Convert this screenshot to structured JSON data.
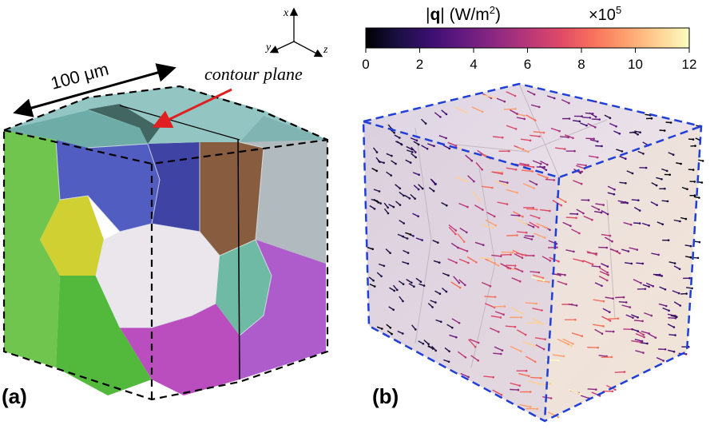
{
  "panel_a": {
    "label": "(a)",
    "scale_label": "100 μm",
    "contour_label": "contour plane",
    "axes": {
      "x": "x",
      "y": "y",
      "z": "z"
    }
  },
  "panel_b": {
    "label": "(b)",
    "colorbar": {
      "title_prefix": "|",
      "title_bold": "q",
      "title_suffix": "|  (W/m",
      "title_sup": "2",
      "title_close": ")",
      "multiplier": "×10",
      "multiplier_sup": "5",
      "ticks": [
        "0",
        "2",
        "4",
        "6",
        "8",
        "10",
        "12"
      ],
      "tick_values": [
        0,
        2,
        4,
        6,
        8,
        10,
        12
      ],
      "range": [
        0,
        12
      ],
      "colors": [
        "#000004",
        "#1a1042",
        "#3b0f70",
        "#641a80",
        "#8c2981",
        "#b73779",
        "#de4968",
        "#f7705c",
        "#fe9f6d",
        "#fecf92",
        "#fcfdbf"
      ]
    }
  },
  "colors": {
    "cube_outline_a": "#000000",
    "cube_outline_b": "#1f3fd6",
    "arrow_red": "#e02020"
  }
}
